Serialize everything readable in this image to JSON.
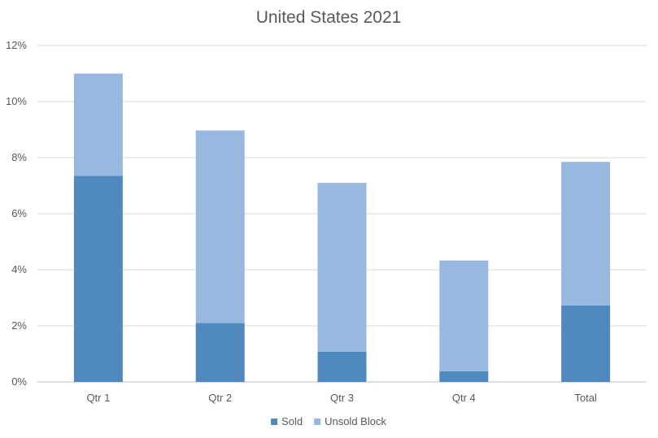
{
  "chart_data": {
    "type": "bar",
    "stacked": true,
    "title": "United States 2021",
    "xlabel": "",
    "ylabel": "",
    "categories": [
      "Qtr 1",
      "Qtr 2",
      "Qtr 3",
      "Qtr 4",
      "Total"
    ],
    "series": [
      {
        "name": "Sold",
        "color": "#4f89bd",
        "values": [
          7.35,
          2.1,
          1.08,
          0.38,
          2.73
        ]
      },
      {
        "name": "Unsold Block",
        "color": "#98b8df",
        "values": [
          3.65,
          6.87,
          6.02,
          3.95,
          5.12
        ]
      }
    ],
    "ylim": [
      0,
      12
    ],
    "yticks": [
      0,
      2,
      4,
      6,
      8,
      10,
      12
    ],
    "ytick_suffix": "%",
    "grid": true,
    "legend": "bottom"
  }
}
